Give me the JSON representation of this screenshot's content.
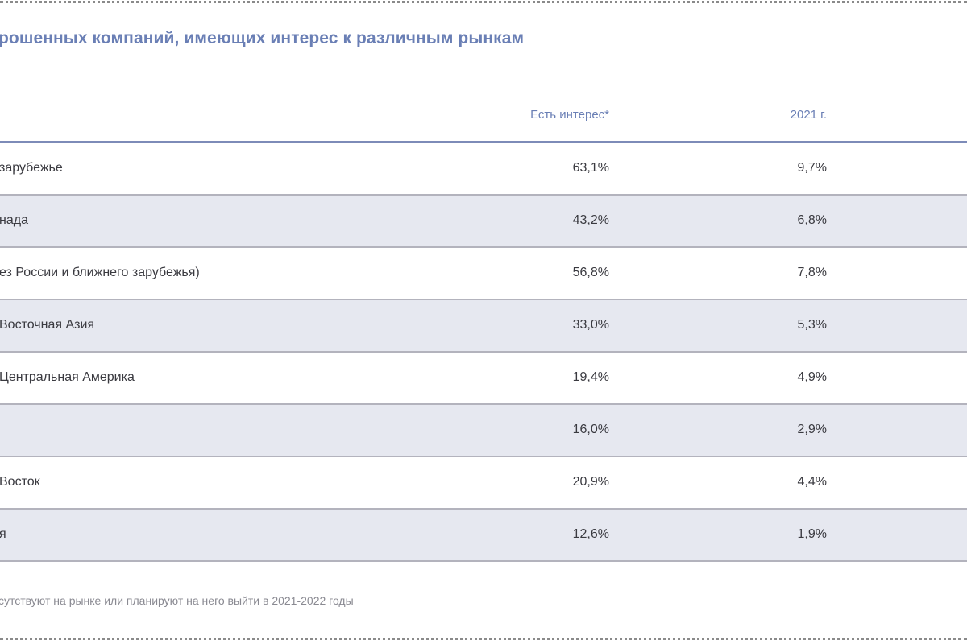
{
  "title": "рошенных компаний, имеющих интерес к различным рынкам",
  "columns": {
    "interest": "Есть интерес*",
    "year": "2021 г."
  },
  "rows": [
    {
      "name": "зарубежье",
      "interest": "63,1%",
      "year": "9,7%"
    },
    {
      "name": "нада",
      "interest": "43,2%",
      "year": "6,8%"
    },
    {
      "name": "ез России и ближнего зарубежья)",
      "interest": "56,8%",
      "year": "7,8%"
    },
    {
      "name": "Восточная Азия",
      "interest": "33,0%",
      "year": "5,3%"
    },
    {
      "name": "Центральная Америка",
      "interest": "19,4%",
      "year": "4,9%"
    },
    {
      "name": "",
      "interest": "16,0%",
      "year": "2,9%"
    },
    {
      "name": "Восток",
      "interest": "20,9%",
      "year": "4,4%"
    },
    {
      "name": "я",
      "interest": "12,6%",
      "year": "1,9%"
    }
  ],
  "footnote": "сутствуют на рынке или планируют на него выйти в 2021-2022 годы",
  "colors": {
    "accent": "#6a7fb5",
    "header_rule": "#7d8bb8",
    "row_alt": "#e6e8f0",
    "row_border": "#b3b3bd",
    "text": "#3a3a40"
  }
}
